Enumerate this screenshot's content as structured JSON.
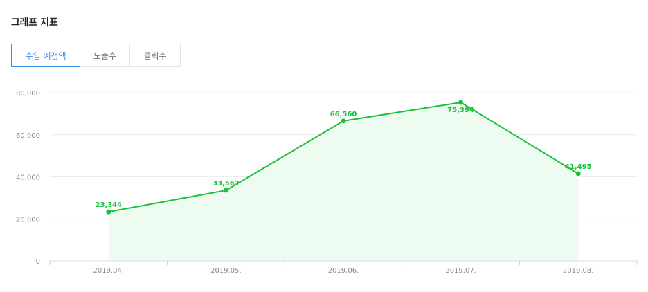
{
  "section": {
    "title": "그래프 지표"
  },
  "tabs": [
    {
      "label": "수입 예정액",
      "active": true
    },
    {
      "label": "노출수",
      "active": false
    },
    {
      "label": "클릭수",
      "active": false
    }
  ],
  "colors": {
    "accent": "#3d8ee8",
    "series_line": "#17c23b",
    "series_fill": "#eefbf0",
    "grid": "#ececec",
    "axis_text": "#8a8a8a"
  },
  "chart_data": {
    "type": "area",
    "categories": [
      "2019.04.",
      "2019.05.",
      "2019.06.",
      "2019.07.",
      "2019.08."
    ],
    "series": [
      {
        "values": [
          23344,
          33562,
          66560,
          75394,
          41495
        ],
        "labels": [
          "23,344",
          "33,562",
          "66,560",
          "75,394",
          "41,495"
        ]
      }
    ],
    "y_ticks": [
      0,
      20000,
      40000,
      60000,
      80000
    ],
    "y_tick_labels": [
      "0",
      "20,000",
      "40,000",
      "60,000",
      "80,000"
    ],
    "ylim": [
      0,
      80000
    ],
    "grid": true,
    "title": "",
    "xlabel": "",
    "ylabel": ""
  }
}
